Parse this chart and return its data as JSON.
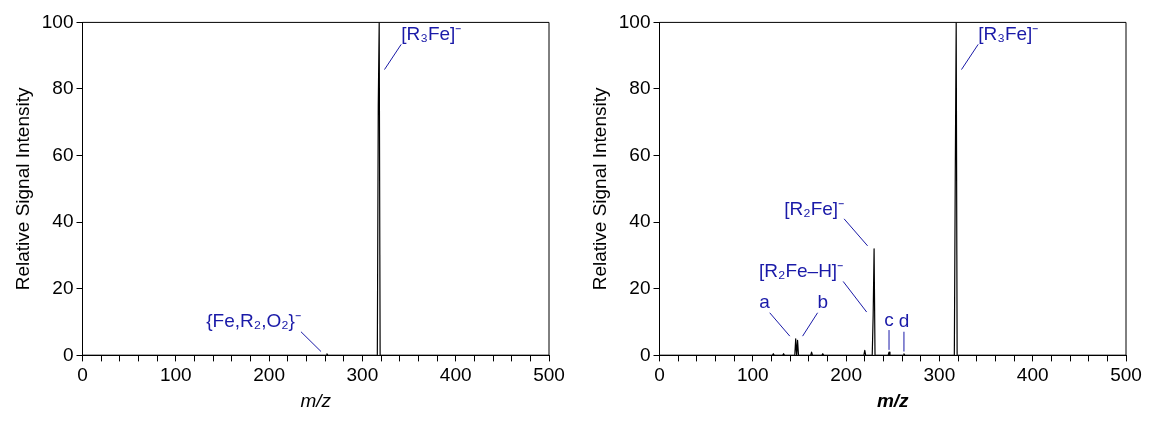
{
  "chart_data": [
    {
      "type": "line",
      "xlabel": "m/z",
      "ylabel": "Relative Signal Intensity",
      "xlim": [
        0,
        500
      ],
      "ylim": [
        0,
        100
      ],
      "xticks": [
        0,
        {
          "value": 20,
          "label": null
        },
        {
          "value": 40,
          "label": null
        },
        {
          "value": 60,
          "label": null
        },
        {
          "value": 80,
          "label": null
        },
        100,
        {
          "value": 120,
          "label": null
        },
        {
          "value": 140,
          "label": null
        },
        {
          "value": 160,
          "label": null
        },
        {
          "value": 180,
          "label": null
        },
        200,
        {
          "value": 220,
          "label": null
        },
        {
          "value": 240,
          "label": null
        },
        {
          "value": 260,
          "label": null
        },
        {
          "value": 280,
          "label": null
        },
        300,
        {
          "value": 320,
          "label": null
        },
        {
          "value": 340,
          "label": null
        },
        {
          "value": 360,
          "label": null
        },
        {
          "value": 380,
          "label": null
        },
        400,
        {
          "value": 420,
          "label": null
        },
        {
          "value": 440,
          "label": null
        },
        {
          "value": 460,
          "label": null
        },
        {
          "value": 480,
          "label": null
        },
        500
      ],
      "yticks": [
        0,
        20,
        40,
        60,
        80,
        100
      ],
      "grid": false,
      "legend": false,
      "marker": "none",
      "line_style": "solid",
      "series": [
        {
          "color": "#000000",
          "x": [
            0,
            261,
            262,
            263,
            316,
            317,
            318,
            319,
            500
          ],
          "values": [
            0,
            0,
            0.5,
            0,
            0,
            75,
            100,
            0,
            0
          ]
        }
      ],
      "annotations": [
        {
          "text": "[R₃Fe]⁻",
          "x": 318,
          "y": 85
        },
        {
          "text": "{Fe,R₂,O₂}⁻",
          "x": 262,
          "y": 0.5
        }
      ]
    },
    {
      "type": "line",
      "xlabel": "m/z",
      "ylabel": "Relative Signal Intensity",
      "xlim": [
        0,
        500
      ],
      "ylim": [
        0,
        100
      ],
      "xticks": [
        0,
        {
          "value": 20,
          "label": null
        },
        {
          "value": 40,
          "label": null
        },
        {
          "value": 60,
          "label": null
        },
        {
          "value": 80,
          "label": null
        },
        100,
        {
          "value": 120,
          "label": null
        },
        {
          "value": 140,
          "label": null
        },
        {
          "value": 160,
          "label": null
        },
        {
          "value": 180,
          "label": null
        },
        200,
        {
          "value": 220,
          "label": null
        },
        {
          "value": 240,
          "label": null
        },
        {
          "value": 260,
          "label": null
        },
        {
          "value": 280,
          "label": null
        },
        300,
        {
          "value": 320,
          "label": null
        },
        {
          "value": 340,
          "label": null
        },
        {
          "value": 360,
          "label": null
        },
        {
          "value": 380,
          "label": null
        },
        400,
        {
          "value": 420,
          "label": null
        },
        {
          "value": 440,
          "label": null
        },
        {
          "value": 460,
          "label": null
        },
        {
          "value": 480,
          "label": null
        },
        500
      ],
      "yticks": [
        0,
        20,
        40,
        60,
        80,
        100
      ],
      "grid": false,
      "legend": false,
      "marker": "none",
      "line_style": "solid",
      "series": [
        {
          "color": "#000000",
          "x": [
            0,
            121,
            122,
            123,
            132,
            133,
            134,
            145,
            146,
            147,
            148,
            149,
            162,
            163,
            164,
            174,
            175,
            176,
            219,
            220,
            221,
            228,
            229,
            230,
            231,
            245,
            246,
            247,
            261,
            262,
            263,
            316,
            317,
            318,
            319,
            500
          ],
          "values": [
            0,
            0,
            0.5,
            0,
            0,
            0.5,
            0,
            0,
            5,
            0,
            4.5,
            0,
            0,
            1,
            0,
            0,
            0.5,
            0,
            0,
            1.5,
            0,
            0,
            12,
            32,
            0,
            0,
            1,
            0,
            0,
            0.5,
            0,
            0,
            54,
            100,
            0,
            0
          ]
        }
      ],
      "annotations": [
        {
          "text": "[R₃Fe]⁻",
          "x": 318,
          "y": 85
        },
        {
          "text": "[R₂Fe]⁻",
          "x": 230,
          "y": 32
        },
        {
          "text": "[R₂Fe–H]⁻",
          "x": 229,
          "y": 12
        },
        {
          "text": "a",
          "x": 146,
          "y": 5
        },
        {
          "text": "b",
          "x": 148,
          "y": 5
        },
        {
          "text": "c",
          "x": 246,
          "y": 1
        },
        {
          "text": "d",
          "x": 262,
          "y": 0.5
        }
      ]
    }
  ]
}
